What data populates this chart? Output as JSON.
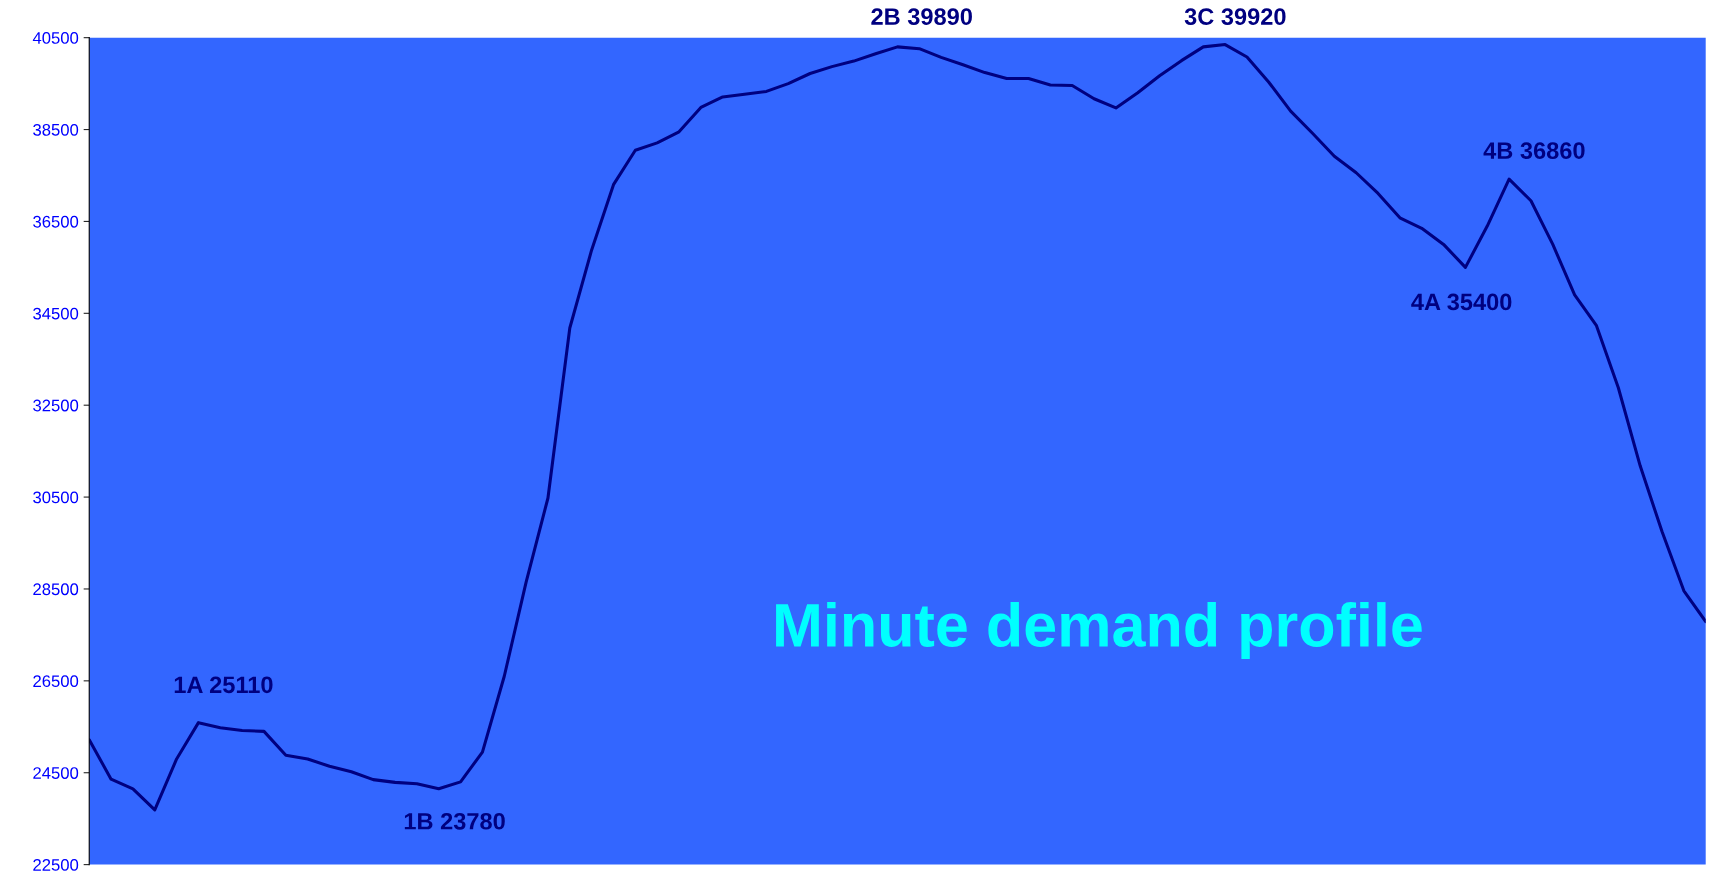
{
  "chart_data": {
    "type": "line",
    "title": "Minute demand profile",
    "categories": [
      null,
      null,
      null,
      null,
      null,
      null,
      null,
      null,
      null,
      null,
      null,
      null,
      null,
      null,
      null,
      null,
      null,
      null,
      null,
      null,
      null,
      null,
      null,
      null,
      null,
      null,
      null,
      null,
      null,
      null,
      null,
      null,
      null,
      null,
      null,
      null,
      null,
      null,
      null,
      null,
      null,
      null,
      null,
      null,
      null,
      null,
      null,
      null,
      null,
      null,
      null,
      null,
      null,
      null,
      null,
      null,
      null,
      null,
      null,
      null,
      null,
      null,
      null,
      null,
      null,
      null,
      null,
      null,
      null,
      null,
      null,
      null,
      null,
      null,
      null
    ],
    "series": [
      {
        "color": "#000080",
        "values": [
          25218,
          24360,
          24150,
          23690,
          24800,
          25590,
          25480,
          25420,
          25400,
          24880,
          24800,
          24640,
          24520,
          24350,
          24290,
          24260,
          24150,
          24300,
          24950,
          26600,
          28650,
          30480,
          34180,
          35880,
          37300,
          38050,
          38210,
          38450,
          38980,
          39210,
          39270,
          39330,
          39500,
          39720,
          39870,
          39990,
          40150,
          40300,
          40260,
          40070,
          39910,
          39740,
          39610,
          39610,
          39470,
          39460,
          39170,
          38970,
          39300,
          39670,
          40000,
          40300,
          40350,
          40080,
          39530,
          38900,
          38420,
          37920,
          37560,
          37110,
          36580,
          36350,
          36000,
          35500,
          36400,
          37420,
          36950,
          36000,
          34900,
          34230,
          32880,
          31180,
          29750,
          28460,
          27790
        ]
      }
    ],
    "ylim": [
      22500,
      40500
    ],
    "yticks": [
      22500,
      24500,
      26500,
      28500,
      30500,
      32500,
      34500,
      36500,
      38500,
      40500
    ],
    "annotations": [
      "1A 25110",
      "1B 23780",
      "2B 39890",
      "3C 39920",
      "4B 36860",
      "4A 35400"
    ],
    "grid": false,
    "legend": false,
    "marker": "none",
    "line_style": "solid",
    "tick_labels": "y"
  }
}
